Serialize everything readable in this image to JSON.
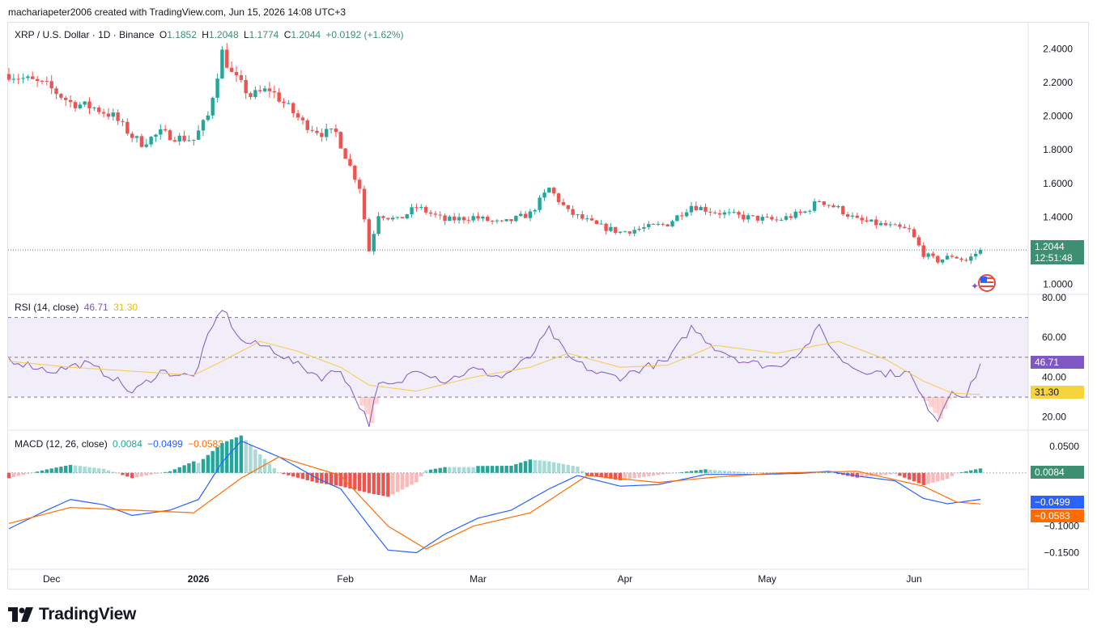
{
  "header": {
    "attribution": "machariapeter2006 created with TradingView.com, Jun 15, 2026 14:08 UTC+3"
  },
  "price_legend": {
    "symbol": "XRP / U.S. Dollar · 1D · Binance",
    "o_label": "O",
    "o_value": "1.1852",
    "h_label": "H",
    "h_value": "1.2048",
    "l_label": "L",
    "l_value": "1.1774",
    "c_label": "C",
    "c_value": "1.2044",
    "change": "+0.0192 (+1.62%)"
  },
  "rsi_legend": {
    "title": "RSI (14, close)",
    "rsi_value": "46.71",
    "ma_value": "31.30"
  },
  "macd_legend": {
    "title": "MACD (12, 26, close)",
    "hist_value": "0.0084",
    "macd_value": "−0.0499",
    "signal_value": "−0.0583"
  },
  "badges": {
    "price": "1.2044",
    "countdown": "12:51:48",
    "rsi": "46.71",
    "rsi_ma": "31.30",
    "hist": "0.0084",
    "macd": "−0.0499",
    "signal": "−0.0583"
  },
  "colors": {
    "up": "#26a69a",
    "down": "#ef5350",
    "rsi": "#7e57c2",
    "rsi_ma": "#f7c948",
    "macd": "#2962ff",
    "signal": "#ff6d00",
    "hist_up": "#26a69a",
    "hist_down": "#ef5350",
    "price_badge": "#3d8f72",
    "rsi_band": "#7e57c2"
  },
  "branding": {
    "logo_text": "TradingView"
  },
  "chart_data": [
    {
      "type": "candlestick",
      "title": "XRP / U.S. Dollar · 1D · Binance",
      "ylim": [
        0.95,
        2.45
      ],
      "y_ticks": [
        "2.4000",
        "2.2000",
        "2.0000",
        "1.8000",
        "1.6000",
        "1.4000",
        "1.0000"
      ],
      "x_ticks": [
        "Dec",
        "2026",
        "Feb",
        "Mar",
        "Apr",
        "May",
        "Jun"
      ],
      "last_price": 1.2044,
      "close_path": [
        [
          "2025-11-22",
          2.25
        ],
        [
          "2025-11-30",
          2.18
        ],
        [
          "2025-12-05",
          2.08
        ],
        [
          "2025-12-10",
          2.05
        ],
        [
          "2025-12-14",
          2.0
        ],
        [
          "2025-12-18",
          1.88
        ],
        [
          "2025-12-20",
          1.84
        ],
        [
          "2025-12-24",
          1.9
        ],
        [
          "2025-12-28",
          1.87
        ],
        [
          "2025-12-31",
          1.86
        ],
        [
          "2026-01-03",
          2.0
        ],
        [
          "2026-01-06",
          2.38
        ],
        [
          "2026-01-08",
          2.25
        ],
        [
          "2026-01-12",
          2.12
        ],
        [
          "2026-01-16",
          2.16
        ],
        [
          "2026-01-20",
          2.05
        ],
        [
          "2026-01-23",
          1.96
        ],
        [
          "2026-01-27",
          1.9
        ],
        [
          "2026-01-30",
          1.9
        ],
        [
          "2026-02-02",
          1.7
        ],
        [
          "2026-02-04",
          1.58
        ],
        [
          "2026-02-06",
          1.2
        ],
        [
          "2026-02-08",
          1.42
        ],
        [
          "2026-02-12",
          1.38
        ],
        [
          "2026-02-16",
          1.46
        ],
        [
          "2026-02-22",
          1.38
        ],
        [
          "2026-02-28",
          1.4
        ],
        [
          "2026-03-06",
          1.36
        ],
        [
          "2026-03-12",
          1.42
        ],
        [
          "2026-03-16",
          1.57
        ],
        [
          "2026-03-20",
          1.43
        ],
        [
          "2026-03-26",
          1.35
        ],
        [
          "2026-03-31",
          1.31
        ],
        [
          "2026-04-04",
          1.33
        ],
        [
          "2026-04-10",
          1.36
        ],
        [
          "2026-04-15",
          1.47
        ],
        [
          "2026-04-20",
          1.43
        ],
        [
          "2026-04-26",
          1.4
        ],
        [
          "2026-05-03",
          1.38
        ],
        [
          "2026-05-09",
          1.43
        ],
        [
          "2026-05-12",
          1.5
        ],
        [
          "2026-05-16",
          1.45
        ],
        [
          "2026-05-20",
          1.38
        ],
        [
          "2026-05-26",
          1.35
        ],
        [
          "2026-05-31",
          1.32
        ],
        [
          "2026-06-03",
          1.18
        ],
        [
          "2026-06-06",
          1.14
        ],
        [
          "2026-06-09",
          1.17
        ],
        [
          "2026-06-12",
          1.14
        ],
        [
          "2026-06-15",
          1.2044
        ]
      ]
    },
    {
      "type": "line",
      "title": "RSI (14, close)",
      "ylim": [
        15,
        80
      ],
      "y_ticks": [
        "80.00",
        "60.00",
        "40.00",
        "20.00"
      ],
      "bands": [
        30,
        50,
        70
      ],
      "series": [
        {
          "name": "RSI",
          "values": [
            [
              "2025-11-22",
              49
            ],
            [
              "2025-12-01",
              43
            ],
            [
              "2025-12-08",
              47
            ],
            [
              "2025-12-14",
              40
            ],
            [
              "2025-12-18",
              32
            ],
            [
              "2025-12-24",
              43
            ],
            [
              "2025-12-31",
              40
            ],
            [
              "2026-01-03",
              60
            ],
            [
              "2026-01-06",
              75
            ],
            [
              "2026-01-10",
              58
            ],
            [
              "2026-01-16",
              55
            ],
            [
              "2026-01-22",
              46
            ],
            [
              "2026-01-27",
              40
            ],
            [
              "2026-01-31",
              44
            ],
            [
              "2026-02-03",
              30
            ],
            [
              "2026-02-06",
              17
            ],
            [
              "2026-02-08",
              36
            ],
            [
              "2026-02-12",
              36
            ],
            [
              "2026-02-16",
              45
            ],
            [
              "2026-02-22",
              38
            ],
            [
              "2026-02-28",
              44
            ],
            [
              "2026-03-06",
              40
            ],
            [
              "2026-03-12",
              50
            ],
            [
              "2026-03-16",
              64
            ],
            [
              "2026-03-20",
              50
            ],
            [
              "2026-03-26",
              42
            ],
            [
              "2026-03-31",
              40
            ],
            [
              "2026-04-05",
              45
            ],
            [
              "2026-04-10",
              48
            ],
            [
              "2026-04-15",
              65
            ],
            [
              "2026-04-20",
              55
            ],
            [
              "2026-04-26",
              48
            ],
            [
              "2026-05-03",
              45
            ],
            [
              "2026-05-09",
              55
            ],
            [
              "2026-05-12",
              65
            ],
            [
              "2026-05-16",
              50
            ],
            [
              "2026-05-20",
              44
            ],
            [
              "2026-05-26",
              42
            ],
            [
              "2026-05-31",
              42
            ],
            [
              "2026-06-03",
              28
            ],
            [
              "2026-06-06",
              19
            ],
            [
              "2026-06-09",
              34
            ],
            [
              "2026-06-12",
              30
            ],
            [
              "2026-06-15",
              46.71
            ]
          ]
        },
        {
          "name": "RSI-based MA",
          "values": [
            [
              "2025-11-22",
              48
            ],
            [
              "2025-12-05",
              45
            ],
            [
              "2025-12-18",
              43
            ],
            [
              "2025-12-31",
              41
            ],
            [
              "2026-01-06",
              48
            ],
            [
              "2026-01-14",
              58
            ],
            [
              "2026-01-22",
              53
            ],
            [
              "2026-01-31",
              45
            ],
            [
              "2026-02-06",
              36
            ],
            [
              "2026-02-16",
              33
            ],
            [
              "2026-02-28",
              40
            ],
            [
              "2026-03-12",
              45
            ],
            [
              "2026-03-20",
              52
            ],
            [
              "2026-03-31",
              45
            ],
            [
              "2026-04-10",
              46
            ],
            [
              "2026-04-20",
              56
            ],
            [
              "2026-05-03",
              52
            ],
            [
              "2026-05-16",
              58
            ],
            [
              "2026-05-26",
              49
            ],
            [
              "2026-06-03",
              38
            ],
            [
              "2026-06-09",
              32
            ],
            [
              "2026-06-15",
              31.3
            ]
          ]
        }
      ]
    },
    {
      "type": "line",
      "title": "MACD (12, 26, close)",
      "ylim": [
        -0.175,
        0.068
      ],
      "y_ticks": [
        "0.0500",
        "−0.1000",
        "−0.1500"
      ],
      "series": [
        {
          "name": "MACD",
          "values": [
            [
              "2025-11-22",
              -0.105
            ],
            [
              "2025-11-30",
              -0.07
            ],
            [
              "2025-12-05",
              -0.05
            ],
            [
              "2025-12-12",
              -0.06
            ],
            [
              "2025-12-18",
              -0.08
            ],
            [
              "2025-12-26",
              -0.07
            ],
            [
              "2026-01-01",
              -0.05
            ],
            [
              "2026-01-06",
              0.02
            ],
            [
              "2026-01-10",
              0.06
            ],
            [
              "2026-01-18",
              0.03
            ],
            [
              "2026-01-26",
              -0.01
            ],
            [
              "2026-01-31",
              -0.03
            ],
            [
              "2026-02-06",
              -0.1
            ],
            [
              "2026-02-10",
              -0.145
            ],
            [
              "2026-02-16",
              -0.15
            ],
            [
              "2026-02-22",
              -0.115
            ],
            [
              "2026-03-01",
              -0.085
            ],
            [
              "2026-03-08",
              -0.07
            ],
            [
              "2026-03-16",
              -0.03
            ],
            [
              "2026-03-22",
              -0.005
            ],
            [
              "2026-03-31",
              -0.025
            ],
            [
              "2026-04-08",
              -0.022
            ],
            [
              "2026-04-18",
              -0.003
            ],
            [
              "2026-04-28",
              -0.003
            ],
            [
              "2026-05-08",
              -0.001
            ],
            [
              "2026-05-14",
              0.003
            ],
            [
              "2026-05-20",
              -0.006
            ],
            [
              "2026-05-28",
              -0.015
            ],
            [
              "2026-06-03",
              -0.048
            ],
            [
              "2026-06-08",
              -0.058
            ],
            [
              "2026-06-15",
              -0.0499
            ]
          ]
        },
        {
          "name": "Signal",
          "values": [
            [
              "2025-11-22",
              -0.095
            ],
            [
              "2025-12-05",
              -0.065
            ],
            [
              "2025-12-18",
              -0.07
            ],
            [
              "2025-12-31",
              -0.075
            ],
            [
              "2026-01-10",
              -0.01
            ],
            [
              "2026-01-18",
              0.03
            ],
            [
              "2026-01-31",
              -0.005
            ],
            [
              "2026-02-10",
              -0.1
            ],
            [
              "2026-02-18",
              -0.143
            ],
            [
              "2026-02-28",
              -0.1
            ],
            [
              "2026-03-12",
              -0.075
            ],
            [
              "2026-03-24",
              -0.005
            ],
            [
              "2026-04-08",
              -0.018
            ],
            [
              "2026-04-20",
              -0.008
            ],
            [
              "2026-05-04",
              0.0
            ],
            [
              "2026-05-20",
              0.003
            ],
            [
              "2026-06-03",
              -0.025
            ],
            [
              "2026-06-10",
              -0.055
            ],
            [
              "2026-06-15",
              -0.0583
            ]
          ]
        }
      ]
    }
  ]
}
